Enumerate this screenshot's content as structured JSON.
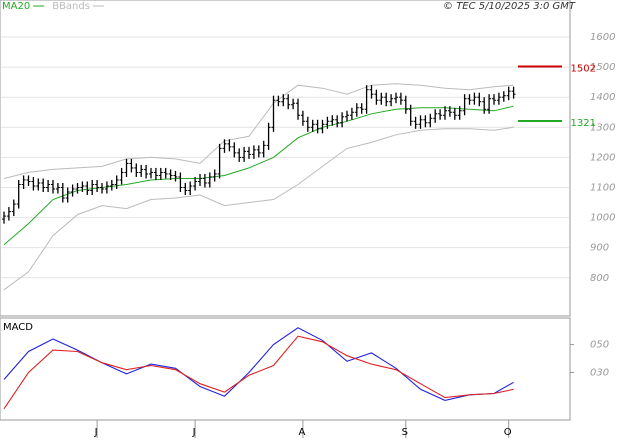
{
  "chart_data": [
    {
      "type": "ohlc",
      "source": "© TEC 5/10/2025 3:0 GMT",
      "ylim": [
        673,
        1723
      ],
      "yticks": [
        800,
        900,
        1000,
        1100,
        1200,
        1300,
        1400,
        1500,
        1600
      ],
      "grid": true,
      "bar_color": "#000000",
      "open": [
        995,
        1005,
        1020,
        1045,
        1110,
        1125,
        1120,
        1105,
        1115,
        1100,
        1110,
        1095,
        1100,
        1065,
        1085,
        1095,
        1100,
        1105,
        1090,
        1110,
        1100,
        1095,
        1105,
        1110,
        1125,
        1150,
        1180,
        1165,
        1150,
        1160,
        1145,
        1150,
        1140,
        1150,
        1145,
        1140,
        1135,
        1100,
        1090,
        1105,
        1120,
        1130,
        1115,
        1135,
        1145,
        1230,
        1245,
        1235,
        1215,
        1200,
        1220,
        1210,
        1225,
        1215,
        1240,
        1300,
        1390,
        1385,
        1395,
        1375,
        1380,
        1340,
        1320,
        1300,
        1310,
        1295,
        1310,
        1320,
        1325,
        1315,
        1335,
        1340,
        1350,
        1365,
        1360,
        1425,
        1410,
        1390,
        1400,
        1385,
        1395,
        1400,
        1390,
        1360,
        1320,
        1310,
        1325,
        1315,
        1330,
        1345,
        1340,
        1355,
        1350,
        1340,
        1355,
        1395,
        1390,
        1400,
        1385,
        1360,
        1395,
        1390,
        1400,
        1405,
        1420
      ],
      "high": [
        1020,
        1035,
        1060,
        1125,
        1140,
        1140,
        1135,
        1130,
        1130,
        1125,
        1125,
        1115,
        1115,
        1100,
        1110,
        1115,
        1120,
        1120,
        1125,
        1125,
        1115,
        1120,
        1125,
        1140,
        1165,
        1195,
        1195,
        1180,
        1175,
        1175,
        1165,
        1165,
        1165,
        1165,
        1160,
        1155,
        1150,
        1115,
        1120,
        1135,
        1145,
        1145,
        1150,
        1160,
        1245,
        1260,
        1260,
        1250,
        1230,
        1235,
        1235,
        1240,
        1240,
        1255,
        1315,
        1405,
        1405,
        1410,
        1410,
        1395,
        1395,
        1355,
        1335,
        1325,
        1325,
        1325,
        1335,
        1340,
        1340,
        1350,
        1355,
        1365,
        1380,
        1380,
        1440,
        1440,
        1425,
        1415,
        1415,
        1410,
        1415,
        1415,
        1405,
        1375,
        1335,
        1340,
        1340,
        1345,
        1360,
        1360,
        1370,
        1370,
        1365,
        1370,
        1410,
        1410,
        1415,
        1415,
        1400,
        1410,
        1410,
        1415,
        1420,
        1435,
        1435
      ],
      "low": [
        980,
        990,
        1005,
        1030,
        1095,
        1105,
        1090,
        1090,
        1085,
        1085,
        1080,
        1080,
        1050,
        1050,
        1070,
        1080,
        1085,
        1075,
        1075,
        1085,
        1080,
        1080,
        1090,
        1095,
        1110,
        1135,
        1150,
        1135,
        1135,
        1130,
        1130,
        1125,
        1125,
        1130,
        1125,
        1120,
        1085,
        1075,
        1075,
        1090,
        1105,
        1100,
        1100,
        1120,
        1130,
        1215,
        1220,
        1200,
        1185,
        1185,
        1195,
        1195,
        1200,
        1200,
        1225,
        1285,
        1370,
        1370,
        1360,
        1360,
        1325,
        1305,
        1285,
        1285,
        1280,
        1280,
        1295,
        1305,
        1300,
        1300,
        1320,
        1325,
        1335,
        1345,
        1345,
        1395,
        1375,
        1375,
        1370,
        1370,
        1380,
        1375,
        1345,
        1305,
        1295,
        1295,
        1300,
        1300,
        1315,
        1325,
        1325,
        1335,
        1325,
        1325,
        1340,
        1375,
        1375,
        1370,
        1345,
        1345,
        1375,
        1375,
        1385,
        1390,
        1395
      ],
      "close": [
        1005,
        1020,
        1045,
        1110,
        1125,
        1120,
        1105,
        1115,
        1100,
        1110,
        1095,
        1100,
        1065,
        1085,
        1095,
        1100,
        1105,
        1090,
        1110,
        1100,
        1095,
        1105,
        1110,
        1125,
        1150,
        1180,
        1165,
        1150,
        1160,
        1145,
        1150,
        1140,
        1150,
        1145,
        1140,
        1135,
        1100,
        1090,
        1105,
        1120,
        1130,
        1115,
        1135,
        1145,
        1230,
        1245,
        1235,
        1215,
        1200,
        1220,
        1210,
        1225,
        1215,
        1240,
        1300,
        1390,
        1385,
        1395,
        1375,
        1380,
        1340,
        1320,
        1300,
        1310,
        1295,
        1310,
        1320,
        1325,
        1315,
        1335,
        1340,
        1350,
        1365,
        1360,
        1425,
        1410,
        1390,
        1400,
        1385,
        1395,
        1400,
        1390,
        1360,
        1320,
        1310,
        1325,
        1315,
        1330,
        1345,
        1340,
        1355,
        1350,
        1340,
        1355,
        1395,
        1390,
        1400,
        1385,
        1360,
        1395,
        1390,
        1400,
        1405,
        1420,
        1410
      ],
      "series": [
        {
          "name": "MA20",
          "color": "#22aa22",
          "x": [
            0,
            5,
            10,
            15,
            20,
            25,
            30,
            35,
            40,
            45,
            50,
            55,
            60,
            65,
            70,
            75,
            80,
            85,
            90,
            95,
            100,
            104
          ],
          "values": [
            910,
            980,
            1060,
            1090,
            1100,
            1110,
            1125,
            1130,
            1130,
            1140,
            1165,
            1200,
            1265,
            1300,
            1320,
            1345,
            1360,
            1365,
            1365,
            1360,
            1355,
            1370
          ]
        },
        {
          "name": "BBands",
          "color": "#bbbbbb",
          "x": [
            0,
            5,
            10,
            15,
            20,
            25,
            30,
            35,
            40,
            45,
            50,
            55,
            60,
            65,
            70,
            75,
            80,
            85,
            90,
            95,
            100,
            104
          ],
          "upper": [
            1130,
            1150,
            1160,
            1165,
            1170,
            1195,
            1200,
            1195,
            1180,
            1255,
            1270,
            1380,
            1440,
            1430,
            1410,
            1440,
            1445,
            1440,
            1430,
            1425,
            1435,
            1440
          ],
          "lower": [
            760,
            820,
            940,
            1010,
            1040,
            1030,
            1060,
            1065,
            1075,
            1040,
            1050,
            1060,
            1110,
            1170,
            1230,
            1250,
            1275,
            1290,
            1295,
            1295,
            1290,
            1300
          ]
        }
      ],
      "annotations": [
        {
          "value": 1502,
          "color": "#cc0000"
        },
        {
          "value": 1321,
          "color": "#22aa22"
        }
      ]
    },
    {
      "type": "line",
      "title": "MACD",
      "ylim": [
        -4,
        69
      ],
      "yticks": [
        {
          "value": 50,
          "label": "050"
        },
        {
          "value": 30,
          "label": "030"
        }
      ],
      "categories": [
        null,
        null,
        null,
        null,
        null,
        null,
        null,
        null,
        null,
        null,
        null,
        null,
        null,
        null,
        null,
        null,
        null,
        null,
        null,
        "J",
        null,
        null,
        null,
        null,
        null,
        null,
        null,
        null,
        null,
        null,
        null,
        null,
        null,
        null,
        null,
        null,
        null,
        null,
        null,
        "J",
        null,
        null,
        null,
        null,
        null,
        null,
        null,
        null,
        null,
        null,
        null,
        null,
        null,
        null,
        null,
        null,
        null,
        null,
        null,
        null,
        null,
        "A",
        null,
        null,
        null,
        null,
        null,
        null,
        null,
        null,
        null,
        null,
        null,
        null,
        null,
        null,
        null,
        null,
        null,
        null,
        null,
        null,
        "S",
        null,
        null,
        null,
        null,
        null,
        null,
        null,
        null,
        null,
        null,
        null,
        null,
        null,
        null,
        null,
        null,
        null,
        null,
        null,
        null,
        "O",
        null
      ],
      "series": [
        {
          "color": "#2222dd",
          "x": [
            0,
            5,
            10,
            15,
            20,
            25,
            30,
            35,
            40,
            45,
            50,
            55,
            60,
            65,
            70,
            75,
            80,
            85,
            90,
            95,
            100,
            104
          ],
          "values": [
            25,
            45,
            54,
            46,
            37,
            29,
            36,
            33,
            20,
            13,
            30,
            50,
            62,
            53,
            38,
            44,
            33,
            18,
            10,
            14,
            15,
            23
          ]
        },
        {
          "color": "#dd2222",
          "x": [
            0,
            5,
            10,
            15,
            20,
            25,
            30,
            35,
            40,
            45,
            50,
            55,
            60,
            65,
            70,
            75,
            80,
            85,
            90,
            95,
            100,
            104
          ],
          "values": [
            4,
            30,
            46,
            45,
            37,
            32,
            35,
            32,
            22,
            16,
            28,
            35,
            56,
            52,
            42,
            36,
            32,
            22,
            12,
            14,
            15,
            18
          ]
        }
      ]
    }
  ]
}
